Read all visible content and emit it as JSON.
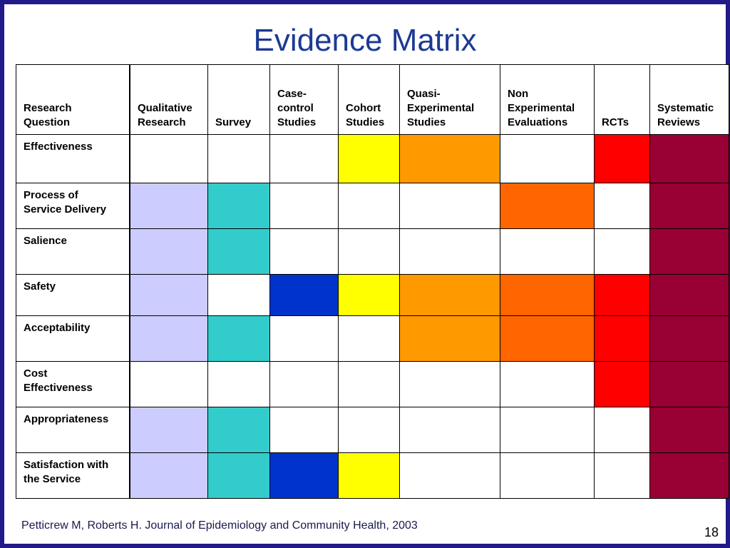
{
  "title": "Evidence Matrix",
  "footer": "Petticrew M, Roberts H. Journal of Epidemiology and Community Health, 2003",
  "page_number": "18",
  "colors": {
    "white": "#ffffff",
    "lavender": "#ccccff",
    "teal": "#33cccc",
    "blue": "#0033cc",
    "yellow": "#ffff00",
    "light-orange": "#ff9900",
    "dark-orange": "#ff6600",
    "red": "#ff0000",
    "maroon": "#990033"
  },
  "headers": [
    "Research\nQuestion",
    "Qualitative\nResearch",
    "Survey",
    "Case-\ncontrol\nStudies",
    "Cohort\nStudies",
    "Quasi-\nExperimental\nStudies",
    "Non\nExperimental\nEvaluations",
    "RCTs",
    "Systematic\nReviews"
  ],
  "rows": [
    {
      "label": "Effectiveness",
      "cells": [
        "white",
        "white",
        "white",
        "yellow",
        "light-orange",
        "white",
        "red",
        "maroon"
      ]
    },
    {
      "label": "Process of\nService Delivery",
      "cells": [
        "lavender",
        "teal",
        "white",
        "white",
        "white",
        "dark-orange",
        "white",
        "maroon"
      ]
    },
    {
      "label": "Salience",
      "cells": [
        "lavender",
        "teal",
        "white",
        "white",
        "white",
        "white",
        "white",
        "maroon"
      ]
    },
    {
      "label": "Safety",
      "cells": [
        "lavender",
        "white",
        "blue",
        "yellow",
        "light-orange",
        "dark-orange",
        "red",
        "maroon"
      ]
    },
    {
      "label": "Acceptability",
      "cells": [
        "lavender",
        "teal",
        "white",
        "white",
        "light-orange",
        "dark-orange",
        "red",
        "maroon"
      ]
    },
    {
      "label": "Cost\nEffectiveness",
      "cells": [
        "white",
        "white",
        "white",
        "white",
        "white",
        "white",
        "red",
        "maroon"
      ]
    },
    {
      "label": "Appropriateness",
      "cells": [
        "lavender",
        "teal",
        "white",
        "white",
        "white",
        "white",
        "white",
        "maroon"
      ]
    },
    {
      "label": "Satisfaction with\nthe Service",
      "cells": [
        "lavender",
        "teal",
        "blue",
        "yellow",
        "white",
        "white",
        "white",
        "maroon"
      ]
    }
  ]
}
